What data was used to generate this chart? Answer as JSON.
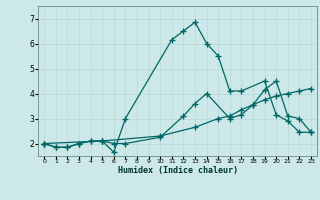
{
  "xlabel": "Humidex (Indice chaleur)",
  "ylabel": "",
  "background_color": "#cce8e8",
  "grid_color": "#b8d8d8",
  "line_color": "#006666",
  "xlim": [
    -0.5,
    23.5
  ],
  "ylim": [
    1.5,
    7.5
  ],
  "xticks": [
    0,
    1,
    2,
    3,
    4,
    5,
    6,
    7,
    8,
    9,
    10,
    11,
    12,
    13,
    14,
    15,
    16,
    17,
    18,
    19,
    20,
    21,
    22,
    23
  ],
  "yticks": [
    2,
    3,
    4,
    5,
    6,
    7
  ],
  "lines": [
    {
      "x": [
        0,
        1,
        2,
        3,
        4,
        5,
        6,
        7,
        11,
        12,
        13,
        14,
        15,
        16,
        17,
        19,
        20,
        21,
        22,
        23
      ],
      "y": [
        2.0,
        1.85,
        1.85,
        2.0,
        2.1,
        2.1,
        1.65,
        3.0,
        6.15,
        6.5,
        6.85,
        6.0,
        5.5,
        4.1,
        4.1,
        4.5,
        3.15,
        2.9,
        2.45,
        2.45
      ]
    },
    {
      "x": [
        0,
        1,
        2,
        3,
        4,
        5,
        6,
        7,
        10,
        12,
        13,
        14,
        16,
        17,
        18,
        19,
        20,
        21,
        22,
        23
      ],
      "y": [
        2.0,
        1.85,
        1.85,
        2.0,
        2.1,
        2.1,
        2.0,
        2.0,
        2.25,
        3.1,
        3.6,
        4.0,
        3.0,
        3.15,
        3.55,
        4.15,
        4.5,
        3.1,
        3.0,
        2.45
      ]
    },
    {
      "x": [
        0,
        5,
        10,
        13,
        15,
        16,
        17,
        18,
        19,
        20,
        21,
        22,
        23
      ],
      "y": [
        2.0,
        2.1,
        2.3,
        2.65,
        3.0,
        3.1,
        3.35,
        3.55,
        3.75,
        3.9,
        4.0,
        4.1,
        4.2
      ]
    }
  ]
}
